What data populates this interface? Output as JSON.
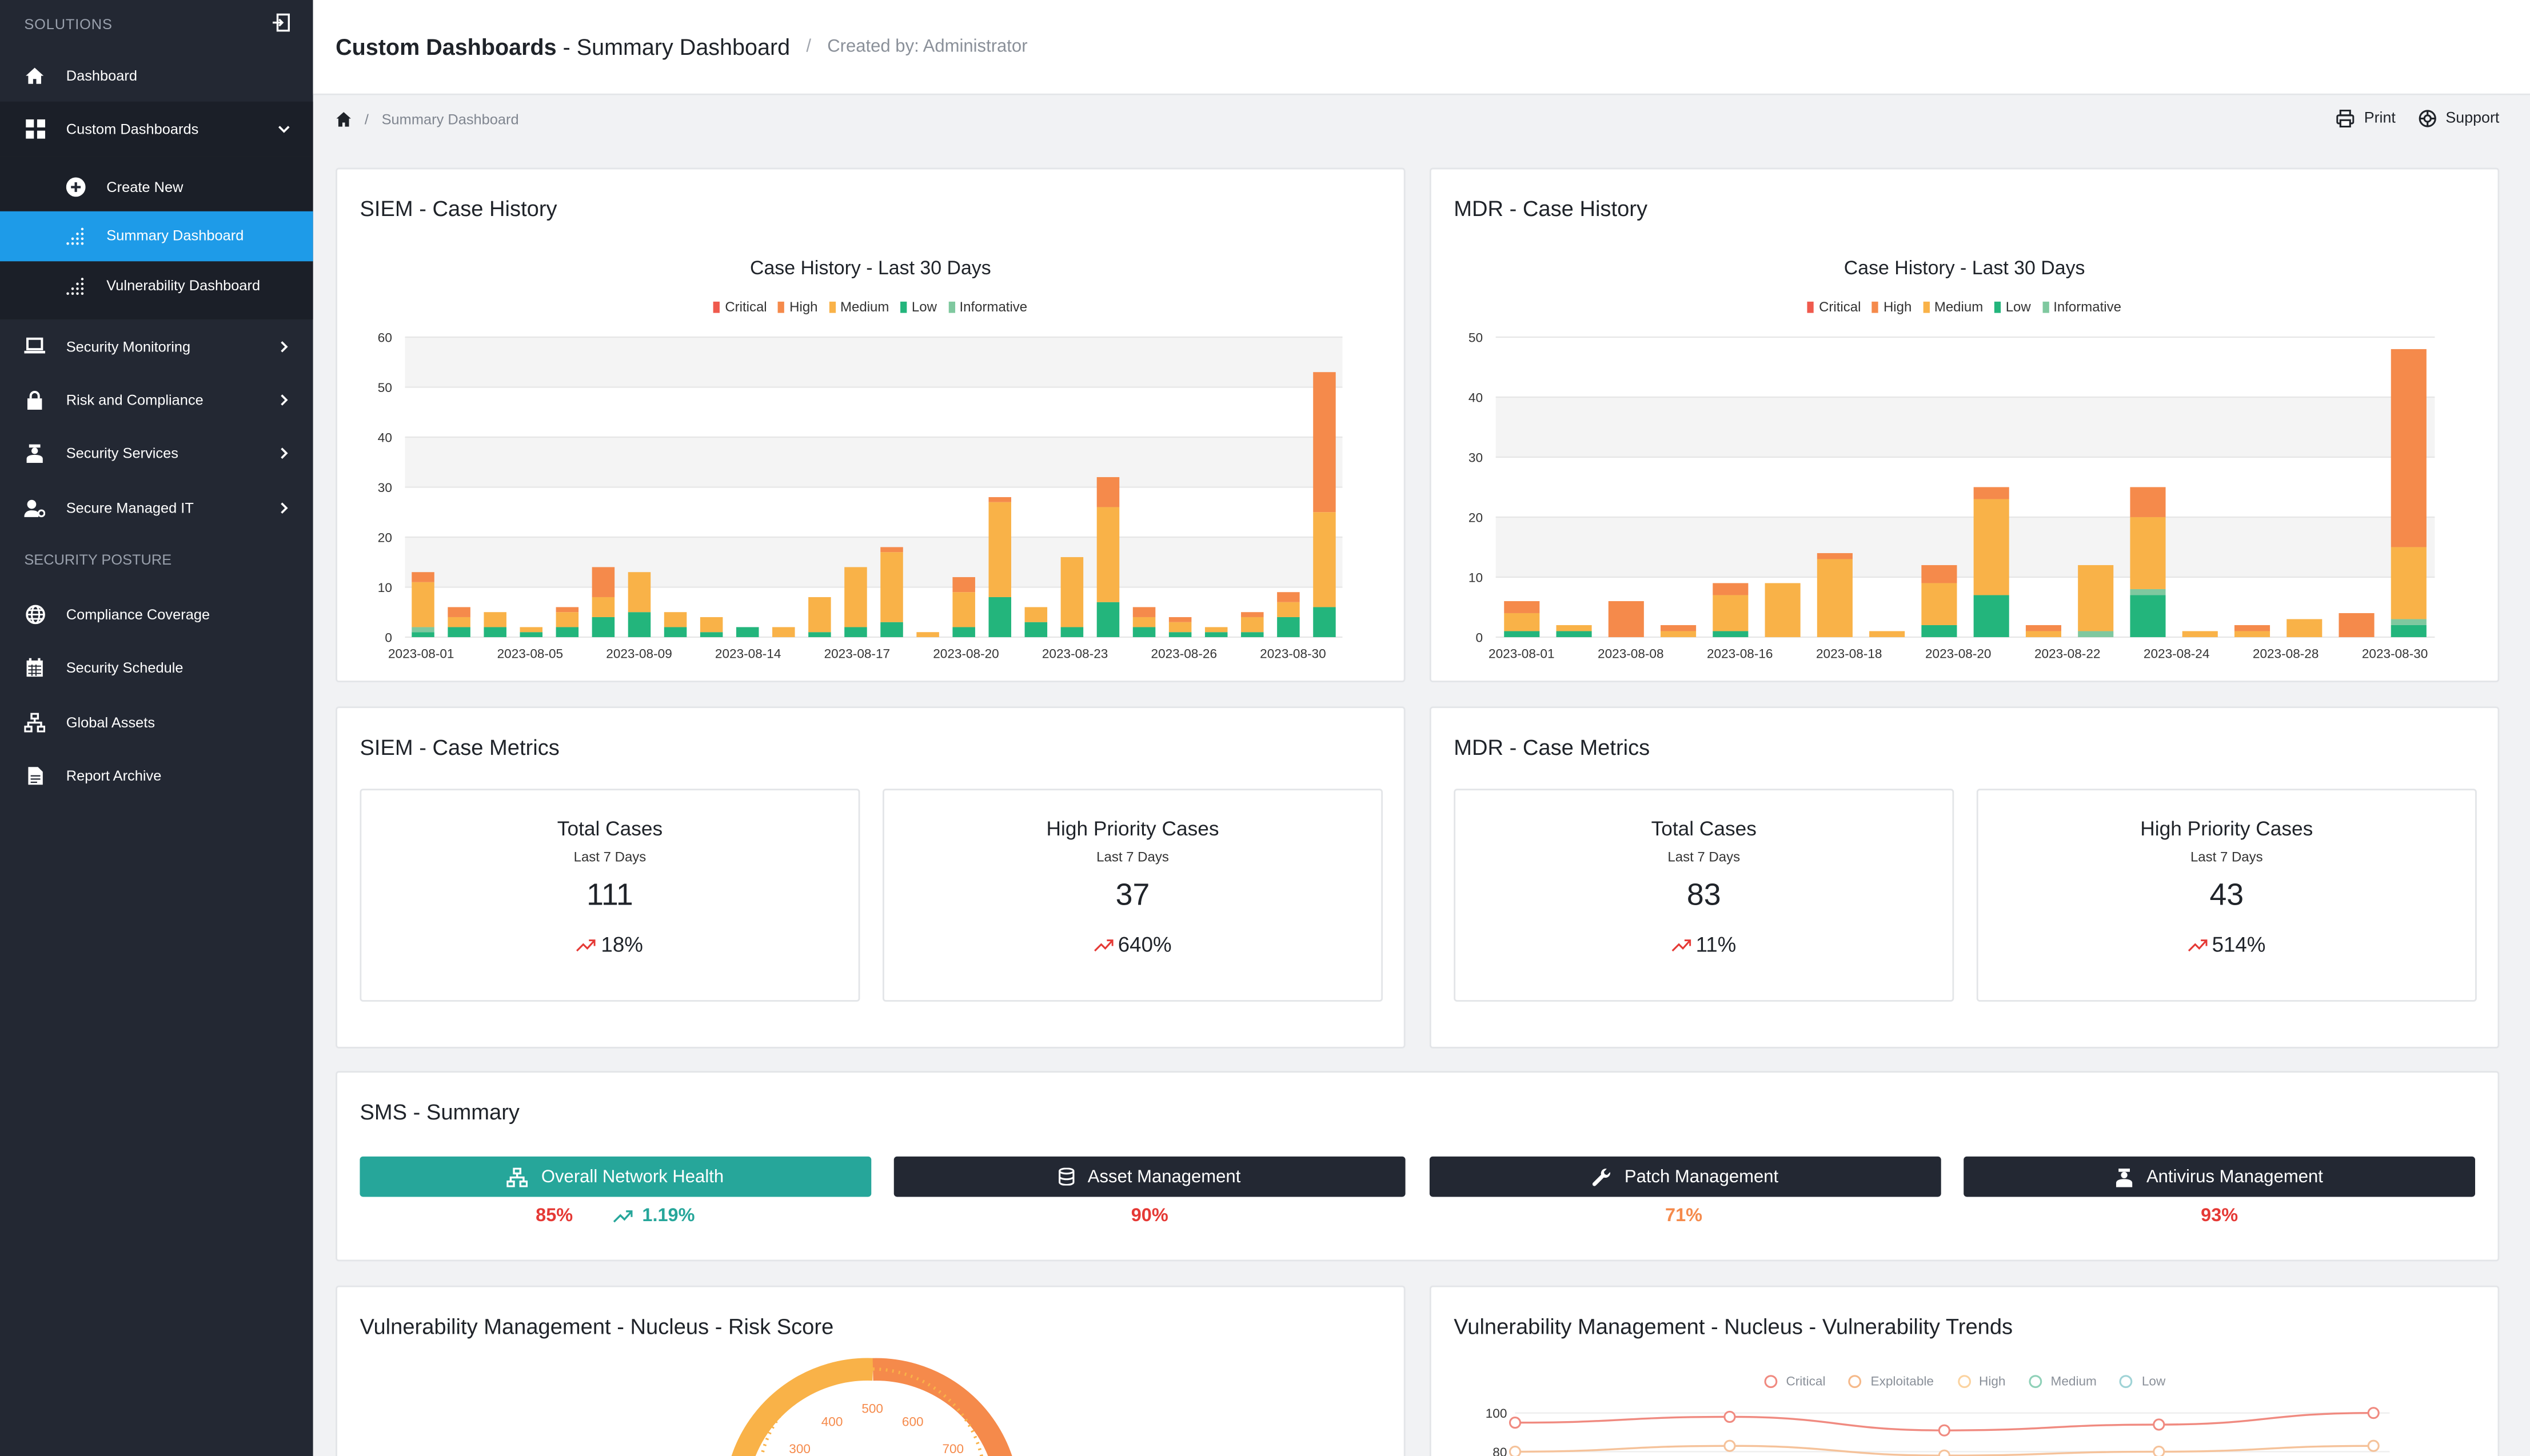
{
  "sidebar": {
    "section_label": "SOLUTIONS",
    "items_top": [
      {
        "label": "Dashboard",
        "icon": "home-icon"
      },
      {
        "label": "Custom Dashboards",
        "icon": "grid-icon"
      }
    ],
    "sub_items": [
      {
        "label": "Create New",
        "icon": "plus-circle-icon"
      },
      {
        "label": "Summary Dashboard",
        "icon": "dotted-chart-icon"
      },
      {
        "label": "Vulnerability Dashboard",
        "icon": "dotted-chart-icon"
      }
    ],
    "items_mid": [
      {
        "label": "Security Monitoring",
        "icon": "laptop-icon"
      },
      {
        "label": "Risk and Compliance",
        "icon": "lock-icon"
      },
      {
        "label": "Security Services",
        "icon": "agent-icon"
      },
      {
        "label": "Secure Managed IT",
        "icon": "user-gear-icon"
      }
    ],
    "posture_heading": "SECURITY POSTURE",
    "items_posture": [
      {
        "label": "Compliance Coverage",
        "icon": "globe-icon"
      },
      {
        "label": "Security Schedule",
        "icon": "calendar-icon"
      },
      {
        "label": "Global Assets",
        "icon": "network-icon"
      },
      {
        "label": "Report Archive",
        "icon": "document-icon"
      }
    ]
  },
  "header": {
    "title_bold": "Custom Dashboards",
    "title_rest": " - Summary Dashboard",
    "separator": "/",
    "created_by": "Created by: Administrator"
  },
  "breadcrumb": {
    "slash": "/",
    "current": "Summary Dashboard",
    "print_label": "Print",
    "support_label": "Support"
  },
  "colors": {
    "critical": "#ef5a4d",
    "high": "#f58a4b",
    "medium": "#f9b248",
    "low": "#23b57c",
    "informative": "#7fc89f",
    "accent": "#1e9be8",
    "teal": "#26a69a",
    "dark": "#232833"
  },
  "siem_history": {
    "title": "SIEM - Case History",
    "chart_title": "Case History - Last 30 Days"
  },
  "mdr_history": {
    "title": "MDR - Case History",
    "chart_title": "Case History - Last 30 Days"
  },
  "legend": [
    "Critical",
    "High",
    "Medium",
    "Low",
    "Informative"
  ],
  "siem_metrics": {
    "title": "SIEM - Case Metrics",
    "cards": [
      {
        "title": "Total Cases",
        "sub": "Last 7 Days",
        "value": "111",
        "delta": "18%"
      },
      {
        "title": "High Priority Cases",
        "sub": "Last 7 Days",
        "value": "37",
        "delta": "640%"
      }
    ]
  },
  "mdr_metrics": {
    "title": "MDR - Case Metrics",
    "cards": [
      {
        "title": "Total Cases",
        "sub": "Last 7 Days",
        "value": "83",
        "delta": "11%"
      },
      {
        "title": "High Priority Cases",
        "sub": "Last 7 Days",
        "value": "43",
        "delta": "514%"
      }
    ]
  },
  "sms": {
    "title": "SMS - Summary",
    "buttons": [
      {
        "label": "Overall Network Health",
        "icon": "network-icon",
        "value": "85%",
        "trend": "1.19%"
      },
      {
        "label": "Asset Management",
        "icon": "database-icon",
        "value": "90%"
      },
      {
        "label": "Patch Management",
        "icon": "wrench-icon",
        "value": "71%"
      },
      {
        "label": "Antivirus Management",
        "icon": "agent-icon",
        "value": "93%"
      }
    ]
  },
  "vuln_risk": {
    "title": "Vulnerability Management - Nucleus - Risk Score",
    "gauge_ticks": [
      "300",
      "400",
      "500",
      "600",
      "700"
    ]
  },
  "vuln_trends": {
    "title": "Vulnerability Management - Nucleus - Vulnerability Trends",
    "legend": [
      "Critical",
      "Exploitable",
      "High",
      "Medium",
      "Low"
    ]
  },
  "chart_data": [
    {
      "type": "bar",
      "stacked": true,
      "title": "Case History - Last 30 Days",
      "ylim": [
        0,
        60
      ],
      "yticks": [
        0,
        10,
        20,
        30,
        40,
        50,
        60
      ],
      "x_tick_labels": [
        "2023-08-01",
        "2023-08-05",
        "2023-08-09",
        "2023-08-14",
        "2023-08-17",
        "2023-08-20",
        "2023-08-23",
        "2023-08-26",
        "2023-08-30"
      ],
      "x_tick_bar_index": [
        0,
        4,
        8,
        12,
        16,
        20,
        24,
        28,
        32
      ],
      "series_names": [
        "Critical",
        "High",
        "Medium",
        "Low",
        "Informative"
      ],
      "bars": [
        [
          0,
          2,
          9,
          1,
          1
        ],
        [
          0,
          2,
          2,
          2,
          0
        ],
        [
          0,
          0,
          3,
          2,
          0
        ],
        [
          0,
          0,
          1,
          1,
          0
        ],
        [
          0,
          1,
          3,
          2,
          0
        ],
        [
          0,
          6,
          4,
          4,
          0
        ],
        [
          0,
          0,
          8,
          5,
          0
        ],
        [
          0,
          0,
          3,
          2,
          0
        ],
        [
          0,
          0,
          3,
          1,
          0
        ],
        [
          0,
          0,
          0,
          2,
          0
        ],
        [
          0,
          0,
          2,
          0,
          0
        ],
        [
          0,
          0,
          7,
          1,
          0
        ],
        [
          0,
          0,
          12,
          2,
          0
        ],
        [
          0,
          1,
          14,
          3,
          0
        ],
        [
          0,
          0,
          1,
          0,
          0
        ],
        [
          0,
          3,
          7,
          2,
          0
        ],
        [
          0,
          1,
          19,
          8,
          0
        ],
        [
          0,
          0,
          3,
          3,
          0
        ],
        [
          0,
          0,
          14,
          2,
          0
        ],
        [
          0,
          6,
          19,
          7,
          0
        ],
        [
          0,
          2,
          2,
          2,
          0
        ],
        [
          0,
          1,
          2,
          1,
          0
        ],
        [
          0,
          0,
          1,
          1,
          0
        ],
        [
          0,
          1,
          3,
          1,
          0
        ],
        [
          0,
          2,
          3,
          4,
          0
        ],
        [
          0,
          28,
          19,
          6,
          0
        ]
      ]
    },
    {
      "type": "bar",
      "stacked": true,
      "title": "Case History - Last 30 Days",
      "ylim": [
        0,
        50
      ],
      "yticks": [
        0,
        10,
        20,
        30,
        40,
        50
      ],
      "x_tick_labels": [
        "2023-08-01",
        "2023-08-08",
        "2023-08-16",
        "2023-08-18",
        "2023-08-20",
        "2023-08-22",
        "2023-08-24",
        "2023-08-28",
        "2023-08-30"
      ],
      "series_names": [
        "Critical",
        "High",
        "Medium",
        "Low",
        "Informative"
      ],
      "bars": [
        [
          0,
          2,
          3,
          1,
          0
        ],
        [
          0,
          0,
          1,
          1,
          0
        ],
        [
          0,
          6,
          0,
          0,
          0
        ],
        [
          0,
          1,
          1,
          0,
          0
        ],
        [
          0,
          2,
          6,
          1,
          0
        ],
        [
          0,
          0,
          9,
          0,
          0
        ],
        [
          0,
          1,
          13,
          0,
          0
        ],
        [
          0,
          0,
          1,
          0,
          0
        ],
        [
          0,
          3,
          7,
          2,
          0
        ],
        [
          0,
          2,
          16,
          7,
          0
        ],
        [
          0,
          1,
          1,
          0,
          0
        ],
        [
          0,
          0,
          11,
          0,
          1
        ],
        [
          0,
          5,
          12,
          7,
          1
        ],
        [
          0,
          0,
          1,
          0,
          0
        ],
        [
          0,
          1,
          1,
          0,
          0
        ],
        [
          0,
          0,
          3,
          0,
          0
        ],
        [
          0,
          4,
          0,
          0,
          0
        ],
        [
          0,
          33,
          12,
          2,
          1
        ]
      ]
    },
    {
      "type": "line",
      "title": "",
      "ylim_visible": [
        80,
        100
      ],
      "yticks": [
        "100",
        "80"
      ],
      "series": [
        {
          "name": "Critical",
          "values": [
            95,
            98,
            91,
            94,
            100
          ]
        },
        {
          "name": "Exploitable",
          "values": [
            80,
            83,
            78,
            80,
            83
          ]
        }
      ]
    }
  ]
}
